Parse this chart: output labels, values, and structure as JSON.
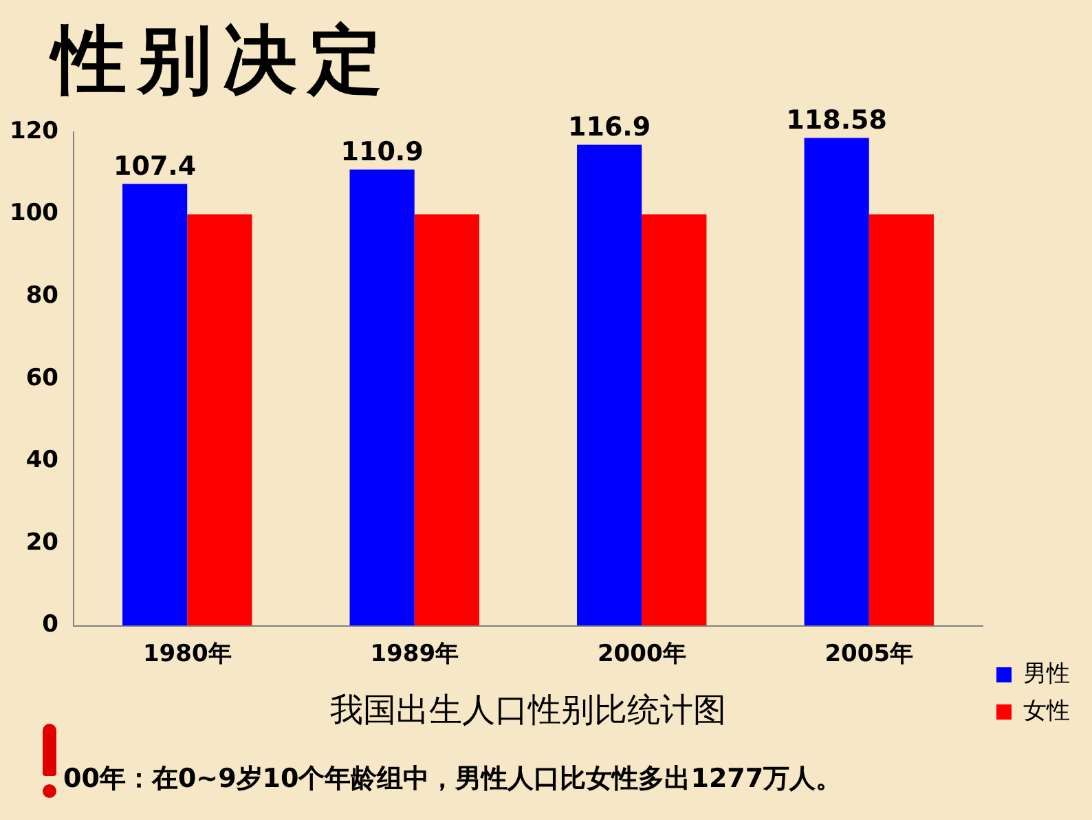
{
  "chart_data": {
    "type": "bar",
    "title": "性别决定",
    "xlabel": "我国出生人口性别比统计图",
    "categories": [
      "1980年",
      "1989年",
      "2000年",
      "2005年"
    ],
    "series": [
      {
        "name": "男性",
        "color": "#0000ff",
        "values": [
          107.4,
          110.9,
          116.9,
          118.58
        ],
        "value_labels": [
          "107.4",
          "110.9",
          "116.9",
          "118.58"
        ]
      },
      {
        "name": "女性",
        "color": "#ff0000",
        "values": [
          100,
          100,
          100,
          100
        ]
      }
    ],
    "ylim": [
      0,
      120
    ],
    "yticks": [
      0,
      20,
      40,
      60,
      80,
      100,
      120
    ],
    "grid": false,
    "legend": "bottom right",
    "annotations": [
      "00年：在0~9岁10个年龄组中，男性人口比女性多出1277万人。"
    ]
  }
}
